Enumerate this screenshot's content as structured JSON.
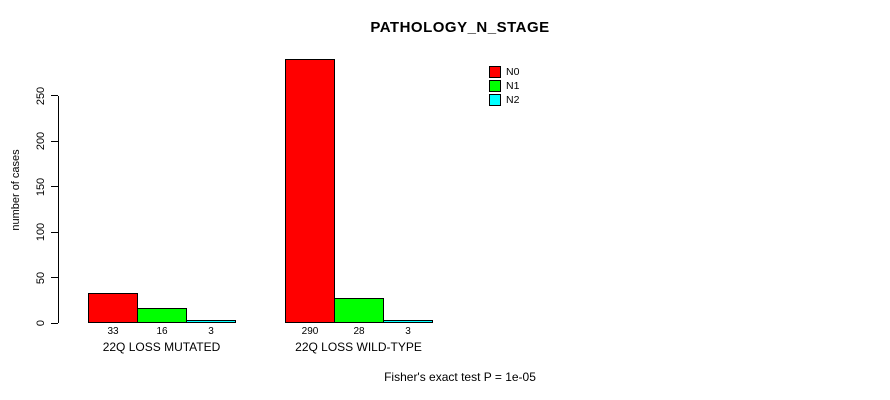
{
  "chart_data": {
    "type": "bar",
    "title": "PATHOLOGY_N_STAGE",
    "xlabel": "",
    "ylabel": "number of cases",
    "categories": [
      "22Q LOSS MUTATED",
      "22Q LOSS WILD-TYPE"
    ],
    "series": [
      {
        "name": "N0",
        "color": "#ff0000",
        "values": [
          33,
          290
        ]
      },
      {
        "name": "N1",
        "color": "#00ff00",
        "values": [
          16,
          28
        ]
      },
      {
        "name": "N2",
        "color": "#00ffff",
        "values": [
          3,
          3
        ]
      }
    ],
    "yticks": [
      0,
      50,
      100,
      150,
      200,
      250
    ],
    "ylim": [
      0,
      293
    ],
    "grid": false,
    "bar_value_labels_shown": true,
    "legend_position": "top-right",
    "legend_entries": [
      "N0",
      "N1",
      "N2"
    ],
    "annotation": "Fisher's exact test P = 1e-05",
    "text_color": "#000000",
    "background_color": "#ffffff"
  }
}
